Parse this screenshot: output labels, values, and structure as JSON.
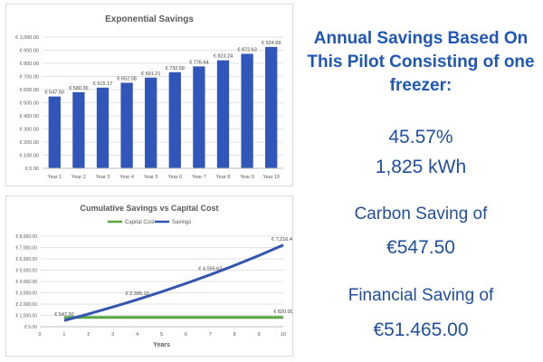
{
  "chart_data": [
    {
      "type": "bar",
      "title": "Exponential Savings",
      "categories": [
        "Year 1",
        "Year 2",
        "Year 3",
        "Year 4",
        "Year 5",
        "Year 6",
        "Year 7",
        "Year 8",
        "Year 9",
        "Year 10"
      ],
      "values": [
        547.5,
        580.35,
        615.17,
        652.08,
        691.21,
        732.68,
        776.64,
        823.24,
        872.63,
        924.99
      ],
      "data_labels": [
        "€ 547.50",
        "€ 580.35",
        "€ 615.17",
        "€ 652.08",
        "€ 691.21",
        "€ 732.68",
        "€ 776.64",
        "€ 823.24",
        "€ 872.63",
        "€ 924.99"
      ],
      "ylim": [
        0,
        1000
      ],
      "yticks": [
        0,
        100,
        200,
        300,
        400,
        500,
        600,
        700,
        800,
        900,
        1000
      ],
      "ytick_labels": [
        "€ 0.00",
        "€ 100.00",
        "€ 200.00",
        "€ 300.00",
        "€ 400.00",
        "€ 500.00",
        "€ 600.00",
        "€ 700.00",
        "€ 800.00",
        "€ 900.00",
        "€ 1,000.00"
      ],
      "grid": true,
      "color": "#2f56b8"
    },
    {
      "type": "line",
      "title": "Cumulative Savings vs Capital Cost",
      "xlabel": "Years",
      "xlim": [
        0,
        10
      ],
      "xticks": [
        0,
        1,
        2,
        3,
        4,
        5,
        6,
        7,
        8,
        9,
        10
      ],
      "xtick_labels": [
        "0",
        "1",
        "2",
        "3",
        "4",
        "5",
        "6",
        "7",
        "8",
        "9",
        "10"
      ],
      "ylim": [
        0,
        8000
      ],
      "yticks": [
        0,
        1000,
        2000,
        3000,
        4000,
        5000,
        6000,
        7000,
        8000
      ],
      "ytick_labels": [
        "€ 0.00",
        "€ 1,000.00",
        "€ 2,000.00",
        "€ 3,000.00",
        "€ 4,000.00",
        "€ 5,000.00",
        "€ 6,000.00",
        "€ 7,000.00",
        "€ 8,000.00"
      ],
      "legend": "top-center",
      "series": [
        {
          "name": "Capital Cost",
          "color": "#5aa544",
          "x": [
            1,
            10
          ],
          "values": [
            820,
            820
          ],
          "labels": [
            {
              "x": 10,
              "y": 820,
              "text": "€ 820.00"
            }
          ]
        },
        {
          "name": "Savings",
          "color": "#3354b0",
          "x": [
            1,
            2,
            3,
            4,
            5,
            6,
            7,
            8,
            9,
            10
          ],
          "values": [
            547.5,
            1127.85,
            1743.02,
            2395.1,
            3086.31,
            3818.99,
            4595.63,
            5418.87,
            6291.5,
            7216.49
          ],
          "labels": [
            {
              "x": 1,
              "y": 547.5,
              "text": "€ 547.50"
            },
            {
              "x": 4,
              "y": 2395.1,
              "text": "€ 2,395.10"
            },
            {
              "x": 7,
              "y": 4595.63,
              "text": "€ 4,595.63"
            },
            {
              "x": 10,
              "y": 7216.49,
              "text": "€ 7,216.49"
            }
          ]
        }
      ]
    }
  ],
  "summary": {
    "headline": "Annual Savings Based On This Pilot Consisting of one freezer:",
    "percent": "45.57%",
    "energy": "1,825 kWh",
    "carbon_label": "Carbon Saving of",
    "carbon_value": "€547.50",
    "financial_label": "Financial Saving of",
    "financial_value": "€51.465.00"
  }
}
